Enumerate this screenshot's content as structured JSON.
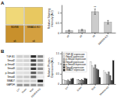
{
  "chart_data": [
    {
      "type": "image",
      "title": "A",
      "colors": [
        "#f0d878",
        "#e8c860",
        "#c8902c",
        "#d4a040"
      ],
      "annotations": [
        "sfi",
        "sfi",
        "SD/SB",
        "SMAD4-KO"
      ]
    },
    {
      "type": "bar",
      "categories": [
        "sfi",
        "sfi",
        "fifi",
        "SMAD4-KO"
      ],
      "values": [
        0.1,
        0.13,
        1.05,
        0.52
      ],
      "errors": [
        0.03,
        0.04,
        0.13,
        0.09
      ],
      "ylabel": "Relative Staining\nIntensity (AU)",
      "color": "#cccccc",
      "ylim": [
        0,
        1.4
      ],
      "yticks": [
        0,
        0.5,
        1
      ],
      "grid": false,
      "annotations": [
        {
          "text": "**",
          "category": "fifi"
        }
      ]
    },
    {
      "type": "heatmap",
      "title": "B",
      "categories": [
        "Ctrl",
        "Sham",
        "Mod",
        "SMAD4-KO"
      ],
      "rows": [
        "TGF-B1",
        "Smad2",
        "p-Smad2",
        "Smad3",
        "p-Smad3",
        "Smad4",
        "SMAD7",
        "GAPDH"
      ],
      "cells": [
        [
          0.3,
          0.3,
          0.85,
          0.55
        ],
        [
          0.25,
          0.28,
          0.8,
          0.5
        ],
        [
          0.22,
          0.25,
          0.75,
          0.45
        ],
        [
          0.28,
          0.28,
          0.82,
          0.52
        ],
        [
          0.2,
          0.22,
          0.7,
          0.4
        ],
        [
          0.3,
          0.32,
          0.65,
          0.15
        ],
        [
          0.32,
          0.3,
          0.28,
          0.9
        ],
        [
          0.5,
          0.5,
          0.5,
          0.5
        ]
      ]
    },
    {
      "type": "bar",
      "categories": [
        "Ctrl",
        "Sham",
        "Mod",
        "SMAD4-KO"
      ],
      "series": [
        {
          "name": "TGF-B1 expression",
          "color": "#ffffff",
          "values": [
            0.2,
            0.22,
            1.1,
            0.65
          ]
        },
        {
          "name": "Smad2 expression",
          "color": "#e0e0e0",
          "values": [
            0.18,
            0.2,
            0.9,
            0.55
          ]
        },
        {
          "name": "p-Smad2 expression",
          "color": "#b0b0b0",
          "values": [
            0.16,
            0.18,
            0.8,
            0.48
          ]
        },
        {
          "name": "Smad3 expression",
          "color": "#888888",
          "values": [
            0.2,
            0.22,
            0.95,
            0.6
          ]
        },
        {
          "name": "p-Smad3 expression",
          "color": "#606060",
          "values": [
            0.14,
            0.16,
            0.75,
            0.42
          ]
        },
        {
          "name": "Smad4 expression",
          "color": "#383838",
          "values": [
            0.25,
            0.28,
            0.7,
            0.18
          ]
        },
        {
          "name": "SMAD7 expression",
          "color": "#101010",
          "values": [
            0.28,
            0.26,
            0.32,
            1.15
          ]
        }
      ],
      "ylabel": "Relative Protein\nExpression (AU)",
      "ylim": [
        0,
        1.6
      ],
      "yticks": [
        0,
        0.5,
        1,
        1.5
      ],
      "grid": false,
      "legend": "upper left"
    }
  ]
}
